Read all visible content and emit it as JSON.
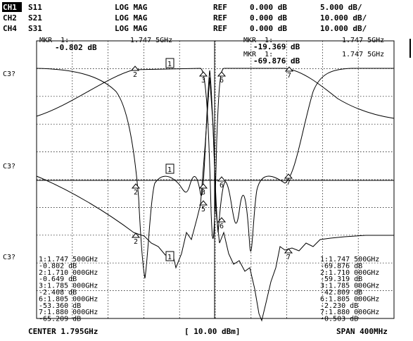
{
  "channels": [
    {
      "ch": "CH1",
      "param": "S11",
      "format": "LOG MAG",
      "ref_label": "REF",
      "ref": "0.000 dB",
      "scale": "5.000 dB/"
    },
    {
      "ch": "CH2",
      "param": "S21",
      "format": "LOG MAG",
      "ref_label": "REF",
      "ref": "0.000 dB",
      "scale": "10.000 dB/"
    },
    {
      "ch": "CH4",
      "param": "S31",
      "format": "LOG MAG",
      "ref_label": "REF",
      "ref": "0.000 dB",
      "scale": "10.000 dB/"
    }
  ],
  "marker_readouts": [
    {
      "label": "MKR  1:",
      "value": "-0.802 dB",
      "freq": "1.747 5GHz"
    },
    {
      "label": "MKR  1:",
      "value": "-19.369 dB",
      "freq": "1.747 5GHz"
    },
    {
      "label": "MKR  1:",
      "value": "-69.876 dB",
      "freq": "1.747 5GHz"
    }
  ],
  "trace_labels": [
    "C3?",
    "C3?",
    "C3?"
  ],
  "trace_markers": {
    "top": [
      "1",
      "2",
      "3",
      "6",
      "7"
    ],
    "middle": [
      "1",
      "2",
      "3",
      "5",
      "6",
      "7"
    ],
    "bottom": [
      "1",
      "2",
      "6",
      "7"
    ]
  },
  "marker_list_left": [
    "1:1.747 500GHz",
    "-0.802 dB",
    "2:1.710 000GHz",
    "-0.649 dB",
    "3:1.785 000GHz",
    "-2.408 dB",
    "6:1.805 000GHz",
    "-53.360 dB",
    "7:1.880 000GHz",
    "-65.209 dB"
  ],
  "marker_list_right": [
    "1:1.747 500GHz",
    "-69.876 dB",
    "2:1.710 000GHz",
    "-59.319 dB",
    "3:1.785 000GHz",
    "-42.809 dB",
    "6:1.805 000GHz",
    "-2.230 dB",
    "7:1.880 000GHz",
    "-0.503 dB"
  ],
  "footer": {
    "center": "CENTER 1.795GHz",
    "power": "[ 10.00 dBm]",
    "span": "SPAN 400MHz"
  }
}
